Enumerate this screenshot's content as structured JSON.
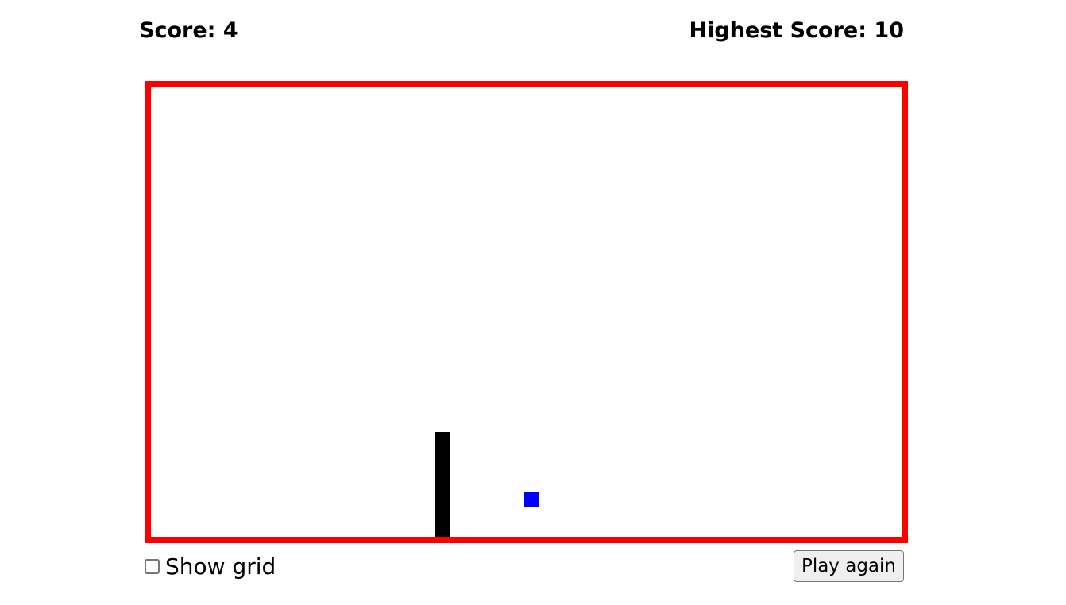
{
  "scoreboard": {
    "score_text": "Score: 4",
    "highest_text": "Highest Score: 10"
  },
  "game": {
    "border_color": "#ff0000",
    "snake_color": "#000000",
    "food_color": "#0000ff"
  },
  "controls": {
    "show_grid_label": "Show grid",
    "show_grid_checked": false,
    "play_again_label": "Play again"
  }
}
